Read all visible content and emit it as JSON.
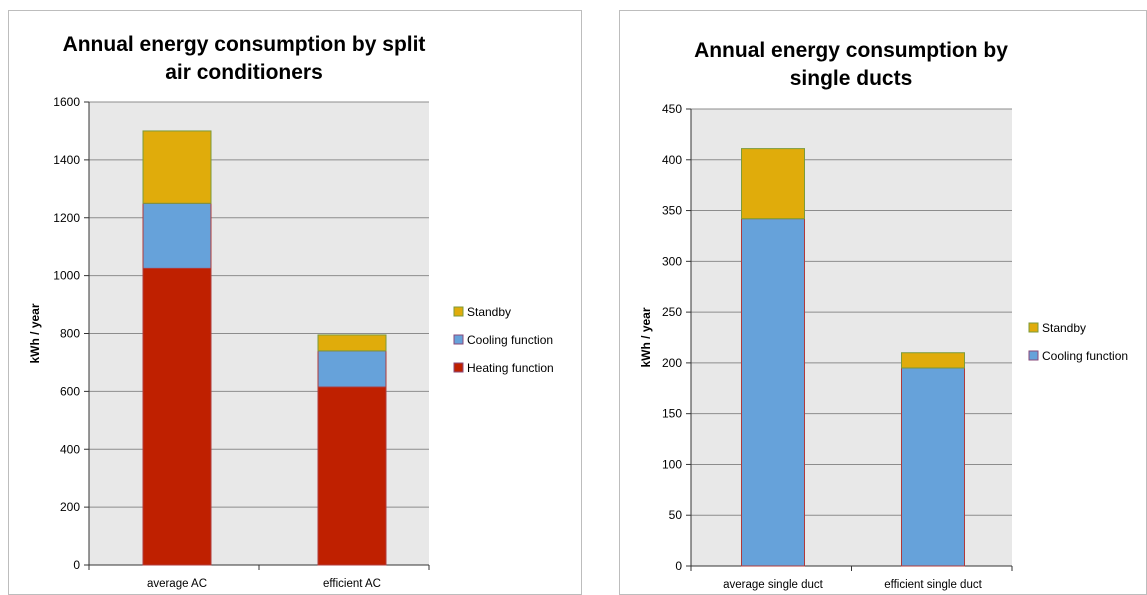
{
  "chart_data": [
    {
      "type": "bar",
      "stacked": true,
      "title": "Annual energy consumption by split air conditioners",
      "title_lines": [
        "Annual energy consumption by split",
        "air conditioners"
      ],
      "xlabel": "",
      "ylabel": "kWh / year",
      "ylim": [
        0,
        1600
      ],
      "yticks": [
        0,
        200,
        400,
        600,
        800,
        1000,
        1200,
        1400,
        1600
      ],
      "grid": true,
      "legend": "right",
      "categories": [
        "average AC",
        "efficient AC"
      ],
      "series": [
        {
          "name": "Heating function",
          "values": [
            1025,
            615
          ],
          "color": "#bf2000"
        },
        {
          "name": "Cooling function",
          "values": [
            225,
            125
          ],
          "color": "#66a2da"
        },
        {
          "name": "Standby",
          "values": [
            250,
            55
          ],
          "color": "#e0ac0b"
        }
      ]
    },
    {
      "type": "bar",
      "stacked": true,
      "title": "Annual energy consumption by single ducts",
      "title_lines": [
        "Annual energy consumption by",
        "single ducts"
      ],
      "xlabel": "",
      "ylabel": "kWh / year",
      "ylim": [
        0,
        450
      ],
      "yticks": [
        0,
        50,
        100,
        150,
        200,
        250,
        300,
        350,
        400,
        450
      ],
      "grid": true,
      "legend": "right",
      "categories": [
        "average single duct",
        "efficient single duct"
      ],
      "series": [
        {
          "name": "Cooling function",
          "values": [
            342,
            195
          ],
          "color": "#66a2da"
        },
        {
          "name": "Standby",
          "values": [
            69,
            15
          ],
          "color": "#e0ac0b"
        }
      ]
    }
  ]
}
